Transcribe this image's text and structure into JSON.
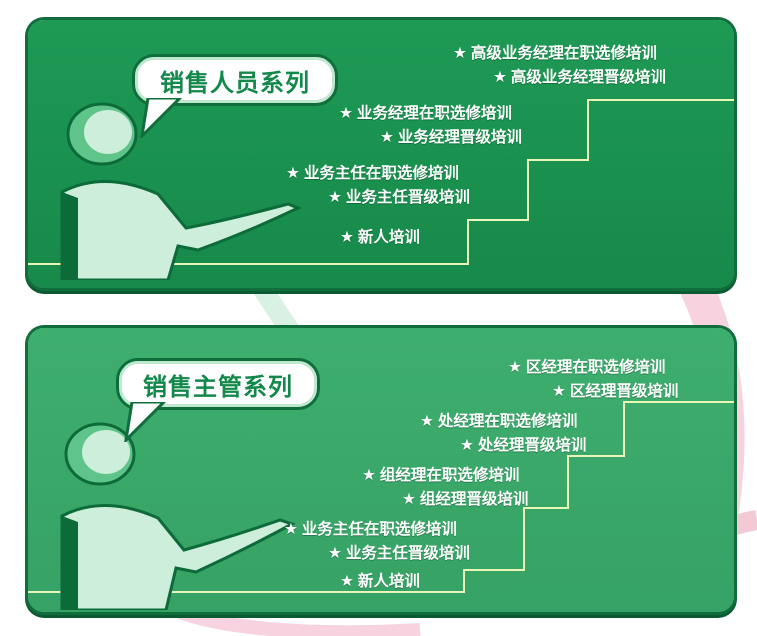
{
  "panels": [
    {
      "title": "销售人员系列",
      "items": [
        "高级业务经理在职选修培训",
        "高级业务经理晋级培训",
        "业务经理在职选修培训",
        "业务经理晋级培训",
        "业务主任在职选修培训",
        "业务主任晋级培训",
        "新人培训"
      ]
    },
    {
      "title": "销售主管系列",
      "items": [
        "区经理在职选修培训",
        "区经理晋级培训",
        "处经理在职选修培训",
        "处经理晋级培训",
        "组经理在职选修培训",
        "组经理晋级培训",
        "业务主任在职选修培训",
        "业务主任晋级培训",
        "新人培训"
      ]
    }
  ],
  "star_glyph": "★",
  "colors": {
    "panel_dark": "#1e9a55",
    "panel_light": "#3eae6e",
    "border": "#0f6e3c",
    "bubble_text": "#12894a",
    "arc_pink": "#f6d3de",
    "arc_green": "#cfeedd"
  }
}
